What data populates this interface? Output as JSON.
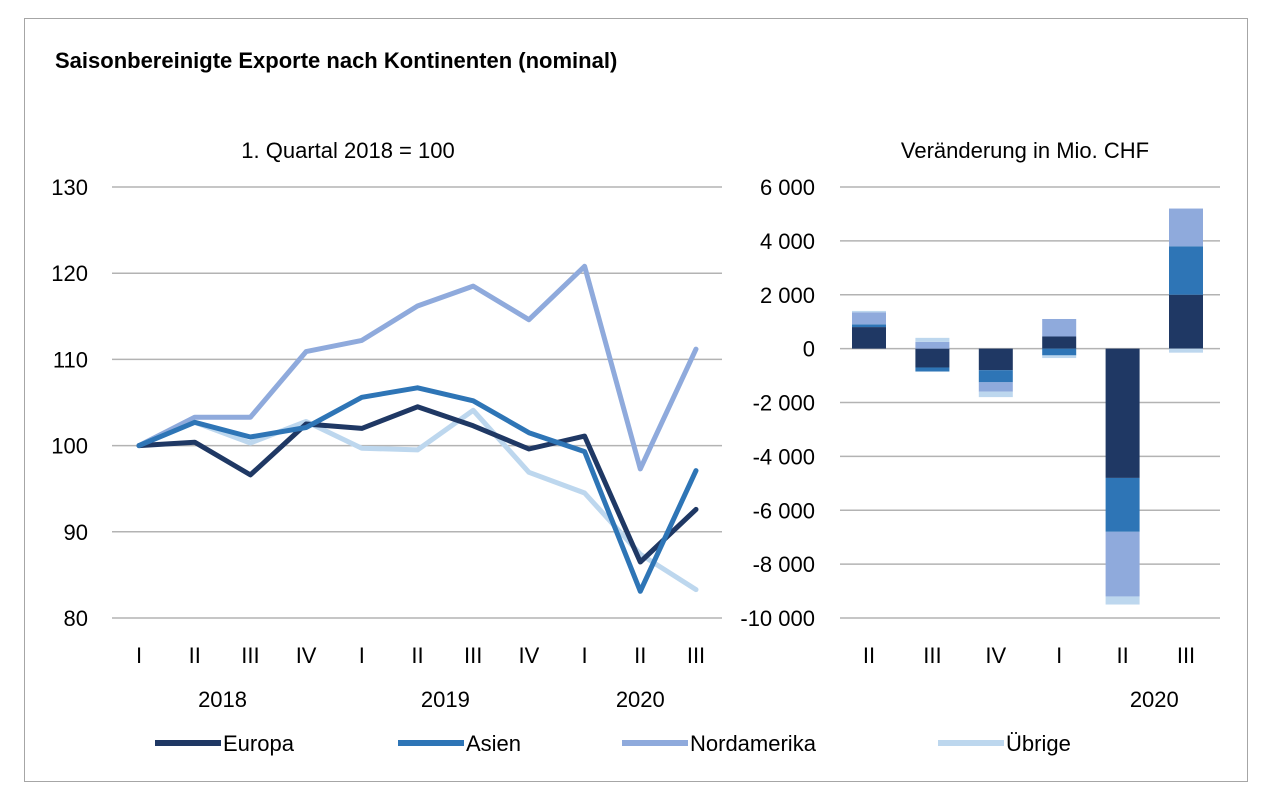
{
  "title": "Saisonbereinigte Exporte nach Kontinenten (nominal)",
  "colors": {
    "Europa": "#1f3864",
    "Asien": "#2e75b6",
    "Nordamerika": "#8faadc",
    "Übrige": "#bdd7ee",
    "grid": "#b3b3b3"
  },
  "chart_data": [
    {
      "type": "line",
      "subtitle": "1. Quartal 2018 = 100",
      "categories": [
        "I",
        "II",
        "III",
        "IV",
        "I",
        "II",
        "III",
        "IV",
        "I",
        "II",
        "III"
      ],
      "year_labels": [
        {
          "label": "2018",
          "center_index": 1.5
        },
        {
          "label": "2019",
          "center_index": 5.5
        },
        {
          "label": "2020",
          "center_index": 9
        }
      ],
      "ylim": [
        80,
        130
      ],
      "yticks": [
        80,
        90,
        100,
        110,
        120,
        130
      ],
      "grid": true,
      "series": [
        {
          "name": "Europa",
          "values": [
            100,
            100.4,
            96.6,
            102.5,
            102.0,
            104.5,
            102.3,
            99.6,
            101.1,
            86.5,
            92.6
          ]
        },
        {
          "name": "Asien",
          "values": [
            100,
            102.7,
            101.0,
            102.1,
            105.6,
            106.7,
            105.2,
            101.5,
            99.3,
            83.1,
            97.1
          ]
        },
        {
          "name": "Nordamerika",
          "values": [
            100,
            103.3,
            103.3,
            110.9,
            112.2,
            116.2,
            118.5,
            114.6,
            120.8,
            97.3,
            111.2
          ]
        },
        {
          "name": "Übrige",
          "values": [
            100,
            102.7,
            100.3,
            102.8,
            99.7,
            99.5,
            104.1,
            96.9,
            94.5,
            87.4,
            83.3
          ]
        }
      ]
    },
    {
      "type": "bar",
      "stacked": true,
      "subtitle": "Veränderung in Mio. CHF",
      "categories": [
        "II",
        "III",
        "IV",
        "I",
        "II",
        "III"
      ],
      "year_labels": [
        {
          "label": "2020",
          "center_index": 4.5
        }
      ],
      "ylim": [
        -10000,
        6000
      ],
      "yticks": [
        -10000,
        -8000,
        -6000,
        -4000,
        -2000,
        0,
        2000,
        4000,
        6000
      ],
      "ytick_labels": [
        "-10 000",
        "-8 000",
        "-6 000",
        "-4 000",
        "-2 000",
        "0",
        "2 000",
        "4 000",
        "6 000"
      ],
      "grid": true,
      "series": [
        {
          "name": "Europa",
          "values": [
            800,
            -700,
            -800,
            450,
            -4800,
            2000
          ]
        },
        {
          "name": "Asien",
          "values": [
            100,
            -150,
            -450,
            -250,
            -2000,
            1800
          ]
        },
        {
          "name": "Nordamerika",
          "values": [
            450,
            250,
            -350,
            650,
            -2400,
            1400
          ]
        },
        {
          "name": "Übrige",
          "values": [
            50,
            150,
            -200,
            -100,
            -300,
            -150
          ]
        }
      ]
    }
  ],
  "legend": [
    "Europa",
    "Asien",
    "Nordamerika",
    "Übrige"
  ]
}
